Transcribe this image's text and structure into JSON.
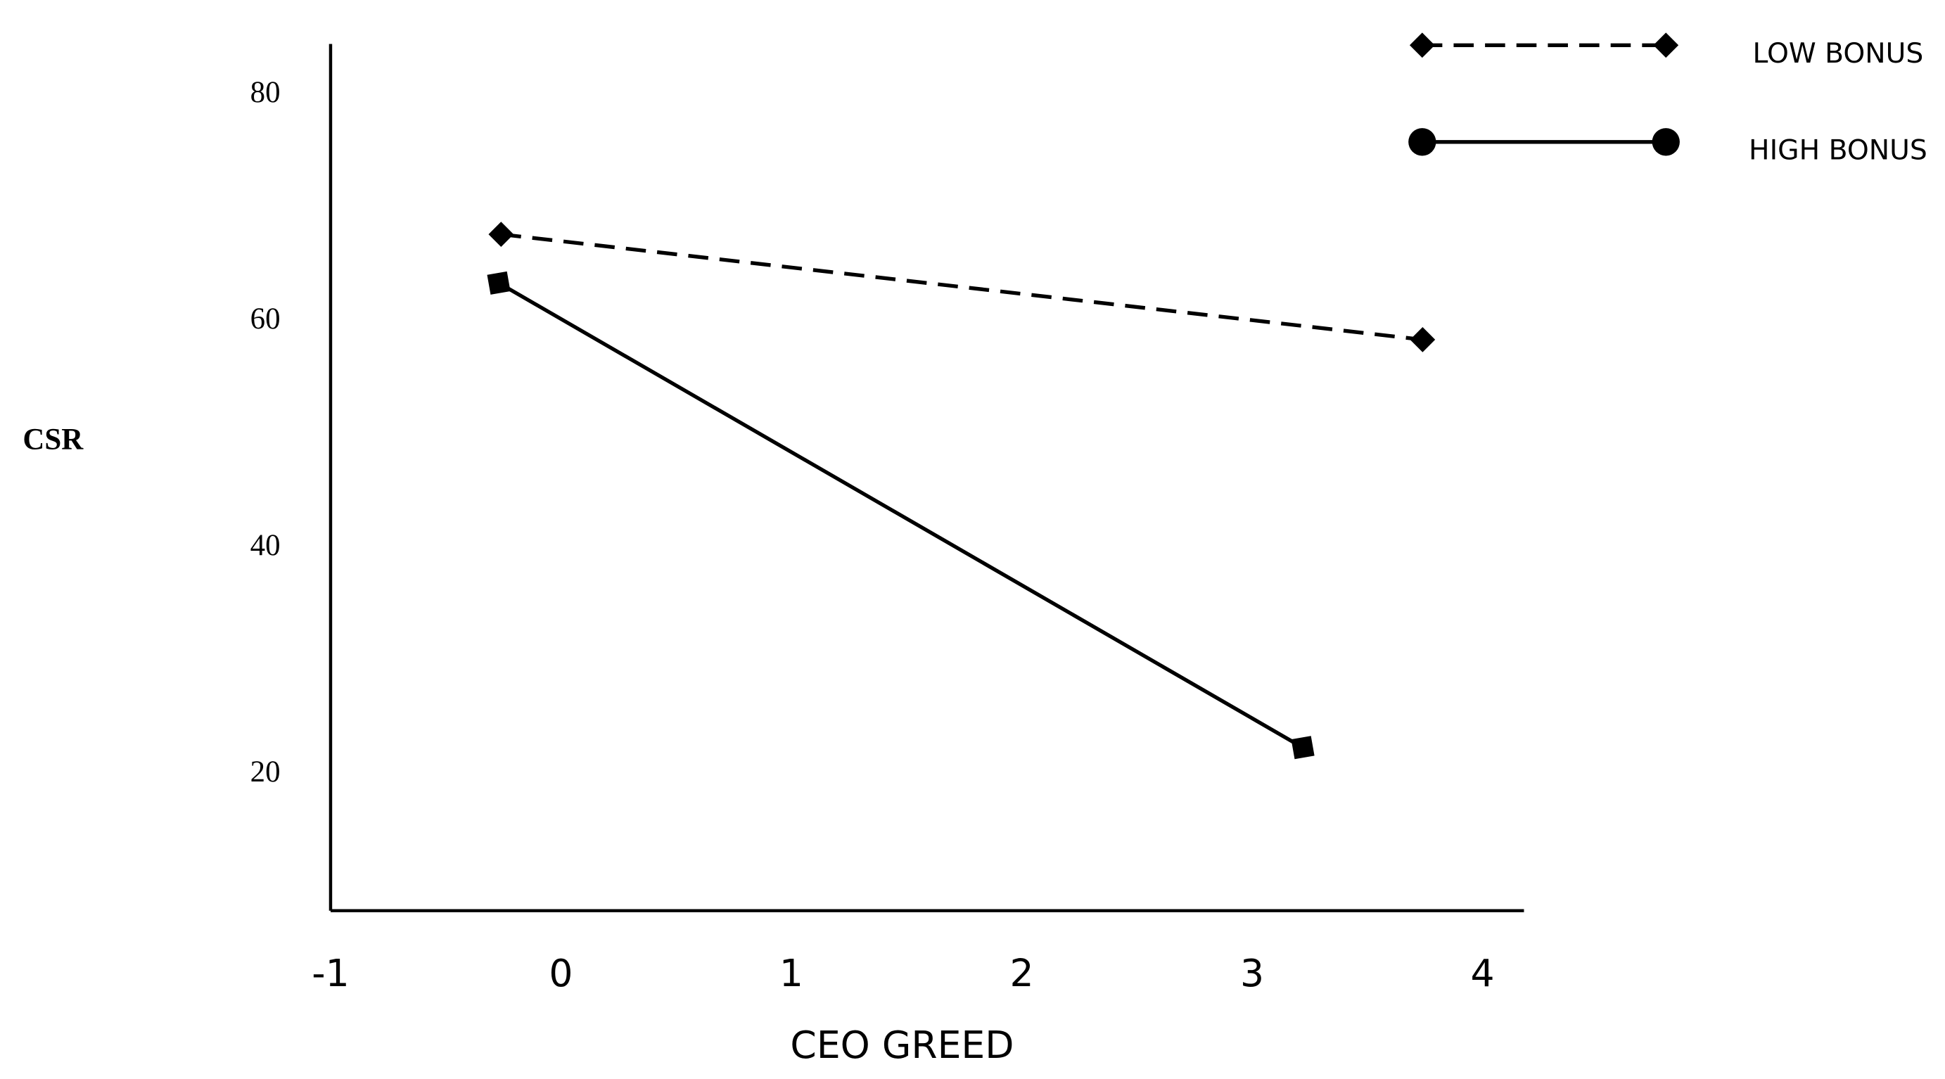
{
  "chart_data": {
    "type": "line",
    "x_label": "CEO GREED",
    "y_label": "CSR",
    "xlim": [
      -1,
      4.18
    ],
    "ylim": [
      8,
      84.5
    ],
    "xticks": [
      -1,
      0,
      1,
      2,
      3,
      4
    ],
    "yticks": [
      20,
      40,
      60,
      80
    ],
    "legend_position": "upper right",
    "series": [
      {
        "name": "LOW BONUS",
        "color": "#000000",
        "dash": "dashed",
        "marker": "diamond",
        "legend_marker": "diamond",
        "x": [
          -0.26,
          3.74
        ],
        "values": [
          67.7,
          58.4
        ]
      },
      {
        "name": "HIGH BONUS",
        "color": "#000000",
        "dash": "solid",
        "marker": "square",
        "legend_marker": "circle",
        "x": [
          -0.27,
          3.22
        ],
        "values": [
          63.4,
          22.4
        ]
      }
    ]
  }
}
